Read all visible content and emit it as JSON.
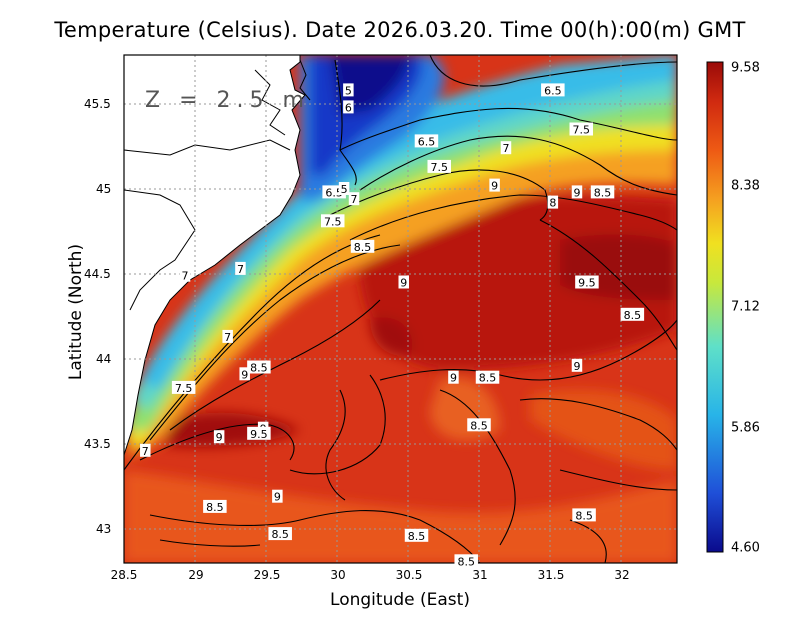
{
  "title": "Temperature (Celsius). Date 2026.03.20. Time 00(h):00(m) GMT",
  "depth_label": "Z = 2.5 m",
  "axes": {
    "xlabel": "Longitude (East)",
    "ylabel": "Latitude (North)",
    "xticks": [
      "28.5",
      "29",
      "29.5",
      "30",
      "30.5",
      "31",
      "31.5",
      "32"
    ],
    "yticks": [
      "45.5",
      "45",
      "44.5",
      "44",
      "43.5",
      "43"
    ],
    "xlim": [
      28.5,
      32.4
    ],
    "ylim": [
      42.8,
      45.8
    ],
    "grid": "dotted"
  },
  "colorbar": {
    "ticks": [
      "9.58",
      "8.38",
      "7.12",
      "5.86",
      "4.60"
    ],
    "min": 4.6,
    "max": 9.58,
    "colormap": "jet",
    "colors": [
      "#0a0a8c",
      "#1f4fd8",
      "#28b4e8",
      "#5fe0c8",
      "#c8e83c",
      "#f0e020",
      "#f5a020",
      "#ee5a14",
      "#d02a10",
      "#9a0a08"
    ]
  },
  "contour_labels": [
    {
      "text": "5",
      "lon": 30.08,
      "lat": 45.58
    },
    {
      "text": "6",
      "lon": 30.08,
      "lat": 45.48
    },
    {
      "text": "6.5",
      "lon": 31.52,
      "lat": 45.58
    },
    {
      "text": "6.5",
      "lon": 30.63,
      "lat": 45.28
    },
    {
      "text": "7",
      "lon": 31.19,
      "lat": 45.24
    },
    {
      "text": "7.5",
      "lon": 31.72,
      "lat": 45.35
    },
    {
      "text": "7.5",
      "lon": 30.72,
      "lat": 45.13
    },
    {
      "text": "9",
      "lon": 31.11,
      "lat": 45.02
    },
    {
      "text": "9",
      "lon": 31.69,
      "lat": 44.98
    },
    {
      "text": "8.5",
      "lon": 31.87,
      "lat": 44.98
    },
    {
      "text": "8",
      "lon": 31.52,
      "lat": 44.92
    },
    {
      "text": "6.5",
      "lon": 29.98,
      "lat": 44.98
    },
    {
      "text": "5",
      "lon": 30.05,
      "lat": 45.0
    },
    {
      "text": "7",
      "lon": 30.12,
      "lat": 44.94
    },
    {
      "text": "7.5",
      "lon": 29.97,
      "lat": 44.81
    },
    {
      "text": "8.5",
      "lon": 30.18,
      "lat": 44.66
    },
    {
      "text": "7",
      "lon": 29.32,
      "lat": 44.53
    },
    {
      "text": "7",
      "lon": 28.93,
      "lat": 44.49
    },
    {
      "text": "9",
      "lon": 30.47,
      "lat": 44.45
    },
    {
      "text": "9.5",
      "lon": 31.76,
      "lat": 44.45
    },
    {
      "text": "8.5",
      "lon": 32.08,
      "lat": 44.26
    },
    {
      "text": "7",
      "lon": 29.23,
      "lat": 44.13
    },
    {
      "text": "8.5",
      "lon": 29.45,
      "lat": 43.95
    },
    {
      "text": "9",
      "lon": 29.35,
      "lat": 43.91
    },
    {
      "text": "9",
      "lon": 31.69,
      "lat": 43.96
    },
    {
      "text": "7.5",
      "lon": 28.92,
      "lat": 43.83
    },
    {
      "text": "9",
      "lon": 30.82,
      "lat": 43.89
    },
    {
      "text": "8.5",
      "lon": 31.06,
      "lat": 43.89
    },
    {
      "text": "9",
      "lon": 29.48,
      "lat": 43.59
    },
    {
      "text": "9.5",
      "lon": 29.45,
      "lat": 43.56
    },
    {
      "text": "9",
      "lon": 29.17,
      "lat": 43.54
    },
    {
      "text": "8.5",
      "lon": 31.0,
      "lat": 43.61
    },
    {
      "text": "7",
      "lon": 28.65,
      "lat": 43.46
    },
    {
      "text": "9",
      "lon": 29.58,
      "lat": 43.19
    },
    {
      "text": "8.5",
      "lon": 29.14,
      "lat": 43.13
    },
    {
      "text": "8.5",
      "lon": 29.6,
      "lat": 42.97
    },
    {
      "text": "8.5",
      "lon": 30.56,
      "lat": 42.96
    },
    {
      "text": "8.5",
      "lon": 31.74,
      "lat": 43.08
    },
    {
      "text": "8.5",
      "lon": 30.91,
      "lat": 42.81
    }
  ]
}
